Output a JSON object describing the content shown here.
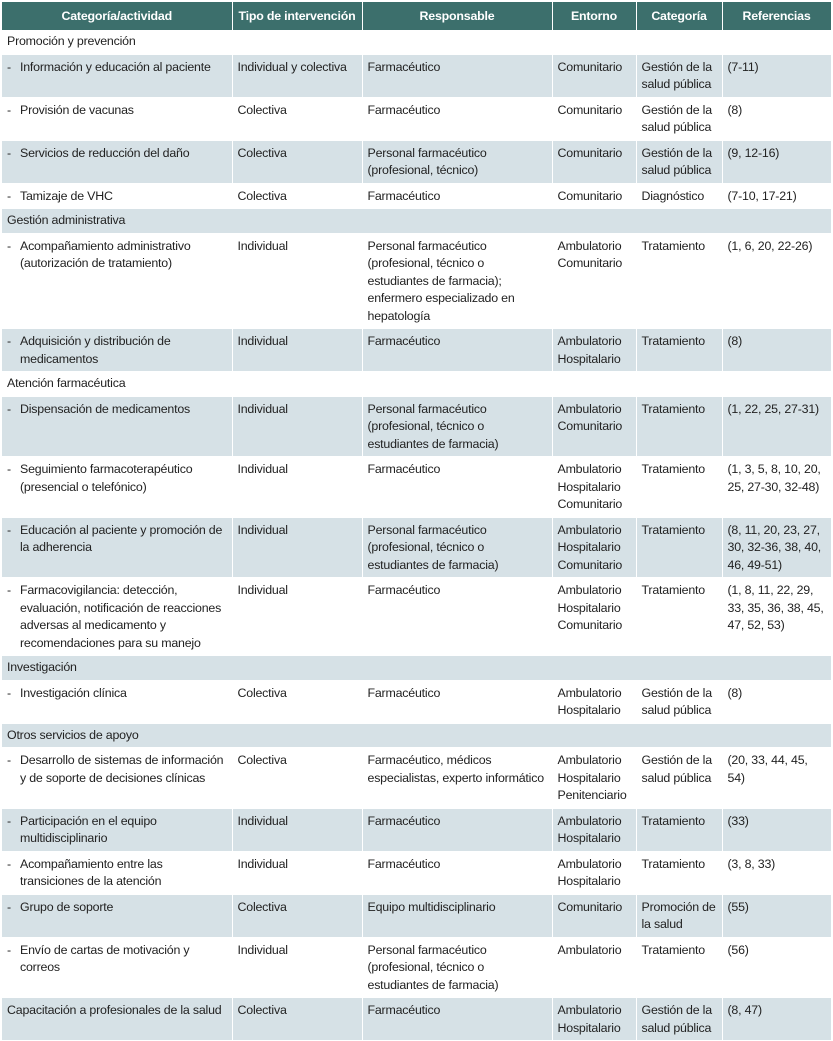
{
  "table": {
    "header": [
      "Categoría/actividad",
      "Tipo de intervención",
      "Responsable",
      "Entorno",
      "Categoría",
      "Referencias"
    ],
    "sections": [
      {
        "title": "Promoción y prevención",
        "rows": [
          [
            "Información y educación al paciente",
            "Individual y colectiva",
            "Farmacéutico",
            [
              "Comunitario"
            ],
            "Gestión de la salud pública",
            "(7-11)"
          ],
          [
            "Provisión de vacunas",
            "Colectiva",
            "Farmacéutico",
            [
              "Comunitario"
            ],
            "Gestión de la salud pública",
            "(8)"
          ],
          [
            "Servicios de reducción del daño",
            "Colectiva",
            "Personal farmacéutico (profesional, técnico)",
            [
              "Comunitario"
            ],
            "Gestión de la salud pública",
            "(9, 12-16)"
          ],
          [
            "Tamizaje de VHC",
            "Colectiva",
            "Farmacéutico",
            [
              "Comunitario"
            ],
            "Diagnóstico",
            "(7-10, 17-21)"
          ]
        ]
      },
      {
        "title": "Gestión administrativa",
        "rows": [
          [
            "Acompañamiento administrativo (autorización de tratamiento)",
            "Individual",
            "Personal farmacéutico (profesional, técnico o estudiantes de farmacia); enfermero especializado en hepatología",
            [
              "Ambulatorio",
              "Comunitario"
            ],
            "Tratamiento",
            "(1, 6, 20, 22-26)"
          ],
          [
            "Adquisición y distribución de medicamentos",
            "Individual",
            "Farmacéutico",
            [
              "Ambulatorio",
              "Hospitalario"
            ],
            "Tratamiento",
            "(8)"
          ]
        ]
      },
      {
        "title": "Atención farmacéutica",
        "rows": [
          [
            "Dispensación de medicamentos",
            "Individual",
            "Personal farmacéutico (profesional, técnico o estudiantes de farmacia)",
            [
              "Ambulatorio",
              "Comunitario"
            ],
            "Tratamiento",
            "(1, 22, 25, 27-31)"
          ],
          [
            "Seguimiento farmacoterapéutico (presencial o telefónico)",
            "Individual",
            "Farmacéutico",
            [
              "Ambulatorio",
              "Hospitalario",
              "Comunitario"
            ],
            "Tratamiento",
            "(1, 3, 5, 8, 10, 20, 25, 27-30, 32-48)"
          ],
          [
            "Educación al paciente y promoción de la adherencia",
            "Individual",
            "Personal farmacéutico (profesional, técnico o estudiantes de farmacia)",
            [
              "Ambulatorio",
              "Hospitalario",
              "Comunitario"
            ],
            "Tratamiento",
            "(8, 11, 20, 23, 27, 30, 32-36, 38, 40, 46, 49-51)"
          ],
          [
            "Farmacovigilancia: detección, evaluación, notificación de reacciones adversas al medicamento y recomendaciones para su manejo",
            "Individual",
            "Farmacéutico",
            [
              "Ambulatorio",
              "Hospitalario",
              "Comunitario"
            ],
            "Tratamiento",
            "(1, 8, 11, 22, 29, 33, 35, 36, 38, 45, 47, 52, 53)"
          ]
        ]
      },
      {
        "title": "Investigación",
        "rows": [
          [
            "Investigación clínica",
            "Colectiva",
            "Farmacéutico",
            [
              "Ambulatorio",
              "Hospitalario"
            ],
            "Gestión de la salud pública",
            "(8)"
          ]
        ]
      },
      {
        "title": "Otros servicios de apoyo",
        "rows": [
          [
            "Desarrollo de sistemas de información y de soporte de decisiones clínicas",
            "Colectiva",
            "Farmacéutico, médicos especialistas, experto informático",
            [
              "Ambulatorio",
              "Hospitalario",
              "Penitenciario"
            ],
            "Gestión de la salud pública",
            "(20, 33, 44, 45, 54)"
          ],
          [
            "Participación en el equipo multidisciplinario",
            "Individual",
            "Farmacéutico",
            [
              "Ambulatorio",
              "Hospitalario"
            ],
            "Tratamiento",
            "(33)"
          ],
          [
            "Acompañamiento entre las transiciones de la atención",
            "Individual",
            "Farmacéutico",
            [
              "Ambulatorio",
              "Hospitalario"
            ],
            "Tratamiento",
            "(3, 8, 33)"
          ],
          [
            "Grupo de soporte",
            "Colectiva",
            "Equipo multidisciplinario",
            [
              "Comunitario"
            ],
            "Promoción de la salud",
            "(55)"
          ],
          [
            "Envío de cartas de motivación y correos",
            "Individual",
            "Personal farmacéutico (profesional, técnico o estudiantes de farmacia)",
            [
              "Ambulatorio"
            ],
            "Tratamiento",
            "(56)"
          ]
        ]
      },
      {
        "rows": [
          [
            "Capacitación a profesionales de la salud",
            "Colectiva",
            "Farmacéutico",
            [
              "Ambulatorio",
              "Hospitalario"
            ],
            "Gestión de la salud pública",
            "(8, 47)"
          ]
        ]
      }
    ]
  }
}
